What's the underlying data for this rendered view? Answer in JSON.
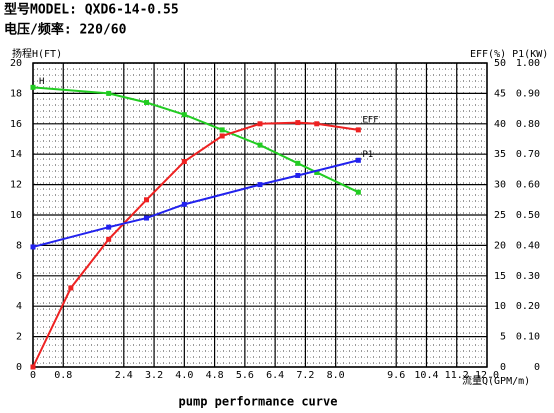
{
  "chart_data": {
    "type": "line",
    "header": [
      "型号MODEL: QXD6-14-0.55",
      "电压/频率: 220/60"
    ],
    "title": "pump performance curve",
    "ylabel": "扬程H(FT)",
    "y2label": "EFF(%) P1(KW)",
    "xlabel": "流量Q(GPM/m)",
    "xlim": [
      0,
      12
    ],
    "xticks": [
      0,
      {
        "value": 0.8,
        "label": "0.8"
      },
      {
        "value": 2.4,
        "label": "2.4"
      },
      {
        "value": 3.2,
        "label": "3.2"
      },
      {
        "value": 4,
        "label": "4.0"
      },
      {
        "value": 4.8,
        "label": "4.8"
      },
      {
        "value": 5.6,
        "label": "5.6"
      },
      {
        "value": 6.4,
        "label": "6.4"
      },
      {
        "value": 7.2,
        "label": "7.2"
      },
      {
        "value": 8,
        "label": "8.0"
      },
      {
        "value": 9.6,
        "label": "9.6"
      },
      {
        "value": 10.4,
        "label": "10.4"
      },
      {
        "value": 11.2,
        "label": "11.2"
      },
      {
        "value": 12,
        "label": "12.0"
      }
    ],
    "ylim": [
      0,
      20
    ],
    "yticks": [
      0,
      2,
      4,
      6,
      8,
      10,
      12,
      14,
      16,
      18,
      20
    ],
    "y2lim": [
      0,
      50
    ],
    "y2ticks": [
      0,
      5,
      10,
      15,
      20,
      25,
      30,
      35,
      40,
      45,
      50
    ],
    "y3lim": [
      0,
      1
    ],
    "y3ticks": [
      0,
      {
        "value": 0.1,
        "label": "0.10"
      },
      {
        "value": 0.2,
        "label": "0.20"
      },
      {
        "value": 0.3,
        "label": "0.30"
      },
      {
        "value": 0.4,
        "label": "0.40"
      },
      {
        "value": 0.5,
        "label": "0.50"
      },
      {
        "value": 0.6,
        "label": "0.60"
      },
      {
        "value": 0.7,
        "label": "0.70"
      },
      {
        "value": 0.8,
        "label": "0.80"
      },
      {
        "value": 0.9,
        "label": "0.90"
      },
      {
        "value": 1,
        "label": "1.00"
      }
    ],
    "grid": true,
    "series": [
      {
        "name": "H",
        "color": "#22cc22",
        "x": [
          0,
          2,
          3,
          4,
          5,
          6,
          7,
          7.5,
          8.6
        ],
        "values": [
          18.4,
          18.0,
          17.4,
          16.6,
          15.6,
          14.6,
          13.4,
          12.8,
          11.5
        ]
      },
      {
        "name": "EFF",
        "color": "#ee2222",
        "axis": "y2",
        "x": [
          0,
          1,
          2,
          3,
          4,
          5,
          6,
          7,
          7.5,
          8.6
        ],
        "values": [
          0,
          13,
          21,
          27.5,
          33.8,
          38,
          40,
          40.2,
          40,
          39
        ]
      },
      {
        "name": "P1",
        "color": "#2222ee",
        "axis": "y3",
        "x": [
          0,
          2,
          3,
          4,
          6,
          7,
          8.6
        ],
        "values": [
          0.395,
          0.46,
          0.49,
          0.535,
          0.6,
          0.63,
          0.68
        ]
      }
    ]
  }
}
